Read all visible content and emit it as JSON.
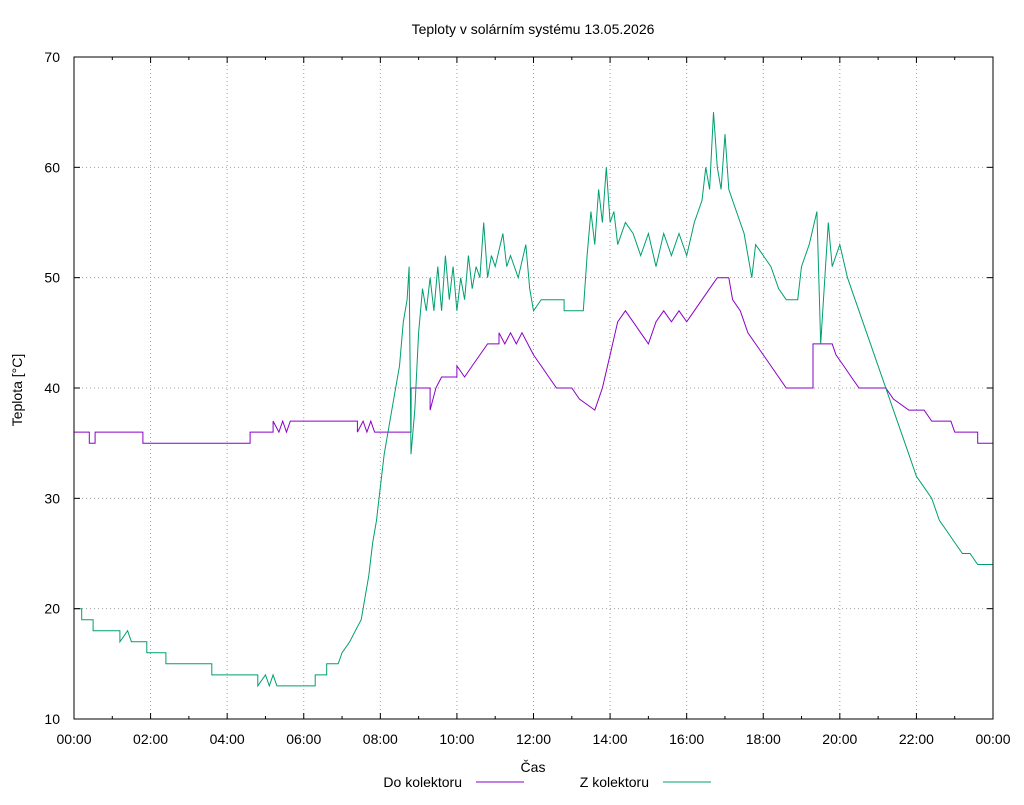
{
  "chart_data": {
    "type": "line",
    "title": "Teploty v solárním systému 13.05.2026",
    "xlabel": "Čas",
    "ylabel": "Teplota [°C]",
    "xlim": [
      0,
      24
    ],
    "ylim": [
      10,
      70
    ],
    "grid": true,
    "legend_position": "bottom",
    "x_ticks": [
      0,
      2,
      4,
      6,
      8,
      10,
      12,
      14,
      16,
      18,
      20,
      22,
      24
    ],
    "x_tick_labels": [
      "00:00",
      "02:00",
      "04:00",
      "06:00",
      "08:00",
      "10:00",
      "12:00",
      "14:00",
      "16:00",
      "18:00",
      "20:00",
      "22:00",
      "00:00"
    ],
    "y_ticks": [
      10,
      20,
      30,
      40,
      50,
      60,
      70
    ],
    "y_tick_labels": [
      "10",
      "20",
      "30",
      "40",
      "50",
      "60",
      "70"
    ],
    "series": [
      {
        "name": "Do kolektoru",
        "color": "#8b00c8",
        "points": [
          [
            0,
            36
          ],
          [
            0.4,
            36
          ],
          [
            0.4,
            35
          ],
          [
            0.55,
            35
          ],
          [
            0.55,
            36
          ],
          [
            1.8,
            36
          ],
          [
            1.8,
            35
          ],
          [
            4.6,
            35
          ],
          [
            4.6,
            36
          ],
          [
            5.2,
            36
          ],
          [
            5.2,
            37
          ],
          [
            5.35,
            36
          ],
          [
            5.45,
            37
          ],
          [
            5.55,
            36
          ],
          [
            5.65,
            37
          ],
          [
            7.4,
            37
          ],
          [
            7.4,
            36
          ],
          [
            7.55,
            37
          ],
          [
            7.65,
            36
          ],
          [
            7.75,
            37
          ],
          [
            7.85,
            36
          ],
          [
            8.8,
            36
          ],
          [
            8.8,
            40
          ],
          [
            9.3,
            40
          ],
          [
            9.3,
            38
          ],
          [
            9.45,
            40
          ],
          [
            9.6,
            41
          ],
          [
            10.0,
            41
          ],
          [
            10.0,
            42
          ],
          [
            10.2,
            41
          ],
          [
            10.4,
            42
          ],
          [
            10.6,
            43
          ],
          [
            10.8,
            44
          ],
          [
            11.1,
            44
          ],
          [
            11.1,
            45
          ],
          [
            11.25,
            44
          ],
          [
            11.4,
            45
          ],
          [
            11.55,
            44
          ],
          [
            11.7,
            45
          ],
          [
            11.85,
            44
          ],
          [
            12.0,
            43
          ],
          [
            12.2,
            42
          ],
          [
            12.4,
            41
          ],
          [
            12.6,
            40
          ],
          [
            13.0,
            40
          ],
          [
            13.2,
            39
          ],
          [
            13.6,
            38
          ],
          [
            13.8,
            40
          ],
          [
            14.0,
            43
          ],
          [
            14.2,
            46
          ],
          [
            14.4,
            47
          ],
          [
            14.6,
            46
          ],
          [
            14.8,
            45
          ],
          [
            15.0,
            44
          ],
          [
            15.2,
            46
          ],
          [
            15.4,
            47
          ],
          [
            15.6,
            46
          ],
          [
            15.8,
            47
          ],
          [
            16.0,
            46
          ],
          [
            16.2,
            47
          ],
          [
            16.4,
            48
          ],
          [
            16.6,
            49
          ],
          [
            16.8,
            50
          ],
          [
            17.1,
            50
          ],
          [
            17.2,
            48
          ],
          [
            17.4,
            47
          ],
          [
            17.6,
            45
          ],
          [
            17.8,
            44
          ],
          [
            18.0,
            43
          ],
          [
            18.2,
            42
          ],
          [
            18.4,
            41
          ],
          [
            18.6,
            40
          ],
          [
            19.2,
            40
          ],
          [
            19.3,
            40
          ],
          [
            19.3,
            44
          ],
          [
            19.8,
            44
          ],
          [
            19.9,
            43
          ],
          [
            20.1,
            42
          ],
          [
            20.3,
            41
          ],
          [
            20.5,
            40
          ],
          [
            21.2,
            40
          ],
          [
            21.4,
            39
          ],
          [
            21.8,
            38
          ],
          [
            22.2,
            38
          ],
          [
            22.4,
            37
          ],
          [
            22.9,
            37
          ],
          [
            23.0,
            36
          ],
          [
            23.6,
            36
          ],
          [
            23.6,
            35
          ],
          [
            24.0,
            35
          ]
        ]
      },
      {
        "name": "Z kolektoru",
        "color": "#009f70",
        "points": [
          [
            0,
            20
          ],
          [
            0.2,
            20
          ],
          [
            0.2,
            19
          ],
          [
            0.5,
            19
          ],
          [
            0.5,
            18
          ],
          [
            1.2,
            18
          ],
          [
            1.2,
            17
          ],
          [
            1.4,
            18
          ],
          [
            1.5,
            17
          ],
          [
            1.9,
            17
          ],
          [
            1.9,
            16
          ],
          [
            2.4,
            16
          ],
          [
            2.4,
            15
          ],
          [
            3.6,
            15
          ],
          [
            3.6,
            14
          ],
          [
            4.8,
            14
          ],
          [
            4.8,
            13
          ],
          [
            5.0,
            14
          ],
          [
            5.1,
            13
          ],
          [
            5.2,
            14
          ],
          [
            5.3,
            13
          ],
          [
            6.3,
            13
          ],
          [
            6.3,
            14
          ],
          [
            6.6,
            14
          ],
          [
            6.6,
            15
          ],
          [
            6.9,
            15
          ],
          [
            7.0,
            16
          ],
          [
            7.2,
            17
          ],
          [
            7.35,
            18
          ],
          [
            7.5,
            19
          ],
          [
            7.6,
            21
          ],
          [
            7.7,
            23
          ],
          [
            7.8,
            26
          ],
          [
            7.9,
            28
          ],
          [
            8.0,
            31
          ],
          [
            8.1,
            34
          ],
          [
            8.3,
            38
          ],
          [
            8.5,
            42
          ],
          [
            8.6,
            46
          ],
          [
            8.7,
            48
          ],
          [
            8.75,
            51
          ],
          [
            8.8,
            34
          ],
          [
            8.9,
            38
          ],
          [
            9.0,
            45
          ],
          [
            9.1,
            49
          ],
          [
            9.2,
            47
          ],
          [
            9.3,
            50
          ],
          [
            9.4,
            47
          ],
          [
            9.5,
            51
          ],
          [
            9.6,
            47
          ],
          [
            9.7,
            52
          ],
          [
            9.8,
            48
          ],
          [
            9.9,
            51
          ],
          [
            10.0,
            47
          ],
          [
            10.1,
            50
          ],
          [
            10.2,
            48
          ],
          [
            10.3,
            52
          ],
          [
            10.4,
            49
          ],
          [
            10.5,
            51
          ],
          [
            10.6,
            50
          ],
          [
            10.7,
            55
          ],
          [
            10.8,
            50
          ],
          [
            10.9,
            52
          ],
          [
            11.0,
            51
          ],
          [
            11.2,
            54
          ],
          [
            11.3,
            51
          ],
          [
            11.4,
            52
          ],
          [
            11.6,
            50
          ],
          [
            11.8,
            53
          ],
          [
            11.9,
            49
          ],
          [
            12.0,
            47
          ],
          [
            12.2,
            48
          ],
          [
            12.8,
            48
          ],
          [
            12.8,
            47
          ],
          [
            13.3,
            47
          ],
          [
            13.4,
            52
          ],
          [
            13.5,
            56
          ],
          [
            13.6,
            53
          ],
          [
            13.7,
            58
          ],
          [
            13.8,
            55
          ],
          [
            13.9,
            60
          ],
          [
            14.0,
            55
          ],
          [
            14.1,
            56
          ],
          [
            14.2,
            53
          ],
          [
            14.4,
            55
          ],
          [
            14.6,
            54
          ],
          [
            14.8,
            52
          ],
          [
            15.0,
            54
          ],
          [
            15.2,
            51
          ],
          [
            15.4,
            54
          ],
          [
            15.6,
            52
          ],
          [
            15.8,
            54
          ],
          [
            16.0,
            52
          ],
          [
            16.2,
            55
          ],
          [
            16.4,
            57
          ],
          [
            16.5,
            60
          ],
          [
            16.6,
            58
          ],
          [
            16.7,
            65
          ],
          [
            16.8,
            60
          ],
          [
            16.9,
            58
          ],
          [
            17.0,
            63
          ],
          [
            17.1,
            58
          ],
          [
            17.3,
            56
          ],
          [
            17.5,
            54
          ],
          [
            17.7,
            50
          ],
          [
            17.8,
            53
          ],
          [
            18.0,
            52
          ],
          [
            18.2,
            51
          ],
          [
            18.4,
            49
          ],
          [
            18.6,
            48
          ],
          [
            18.9,
            48
          ],
          [
            19.0,
            51
          ],
          [
            19.2,
            53
          ],
          [
            19.4,
            56
          ],
          [
            19.5,
            44
          ],
          [
            19.7,
            55
          ],
          [
            19.8,
            51
          ],
          [
            20.0,
            53
          ],
          [
            20.2,
            50
          ],
          [
            20.4,
            48
          ],
          [
            20.6,
            46
          ],
          [
            20.8,
            44
          ],
          [
            21.0,
            42
          ],
          [
            21.2,
            40
          ],
          [
            21.4,
            38
          ],
          [
            21.6,
            36
          ],
          [
            21.8,
            34
          ],
          [
            22.0,
            32
          ],
          [
            22.2,
            31
          ],
          [
            22.4,
            30
          ],
          [
            22.6,
            28
          ],
          [
            22.8,
            27
          ],
          [
            23.0,
            26
          ],
          [
            23.2,
            25
          ],
          [
            23.4,
            25
          ],
          [
            23.6,
            24
          ],
          [
            24.0,
            24
          ]
        ]
      }
    ]
  }
}
